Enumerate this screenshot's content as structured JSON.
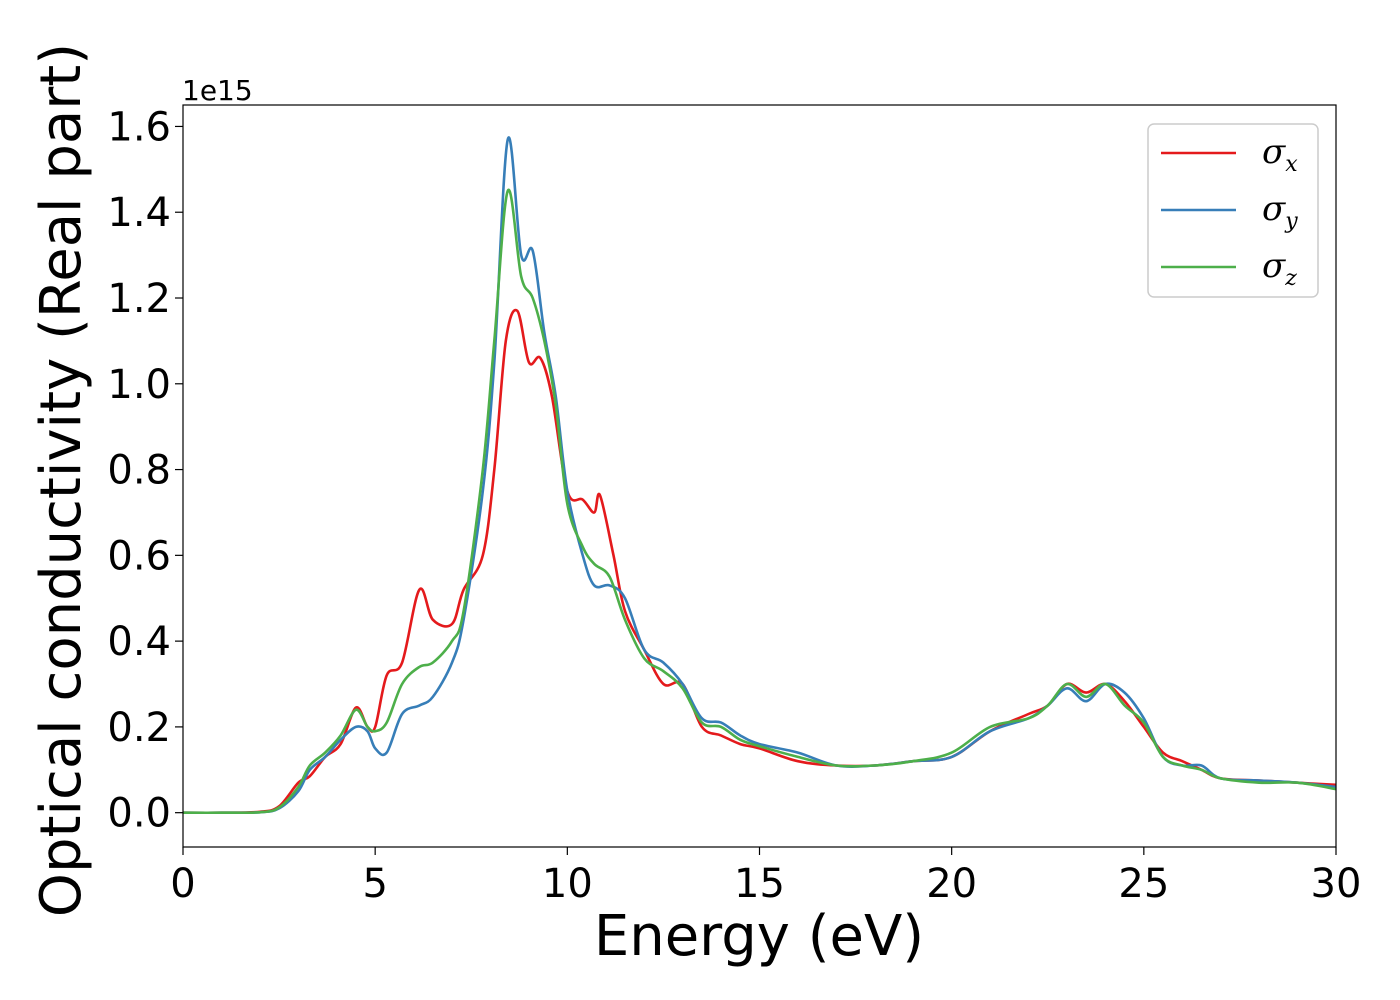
{
  "chart_data": {
    "type": "line",
    "title": "",
    "xlabel": "Energy (eV)",
    "ylabel": "Optical conductivity (Real part)",
    "y_offset_text": "1e15",
    "y_scale_factor": 1000000000000000.0,
    "xlim": [
      0,
      30
    ],
    "ylim": [
      -0.08,
      1.65
    ],
    "x_ticks": [
      0,
      5,
      10,
      15,
      20,
      25,
      30
    ],
    "x_tick_labels": [
      "0",
      "5",
      "10",
      "15",
      "20",
      "25",
      "30"
    ],
    "y_ticks": [
      0.0,
      0.2,
      0.4,
      0.6,
      0.8,
      1.0,
      1.2,
      1.4,
      1.6
    ],
    "y_tick_labels": [
      "0.0",
      "0.2",
      "0.4",
      "0.6",
      "0.8",
      "1.0",
      "1.2",
      "1.4",
      "1.6"
    ],
    "grid": false,
    "legend_position": "top-right",
    "series": [
      {
        "name": "σx",
        "symbol": "σ",
        "subscript": "x",
        "color": "#e41a1c",
        "points": [
          [
            0,
            0
          ],
          [
            1,
            0
          ],
          [
            2,
            0.002
          ],
          [
            2.5,
            0.015
          ],
          [
            3,
            0.07
          ],
          [
            3.3,
            0.085
          ],
          [
            3.7,
            0.13
          ],
          [
            4.1,
            0.16
          ],
          [
            4.5,
            0.245
          ],
          [
            4.8,
            0.2
          ],
          [
            5.0,
            0.2
          ],
          [
            5.3,
            0.32
          ],
          [
            5.7,
            0.35
          ],
          [
            6.15,
            0.52
          ],
          [
            6.5,
            0.45
          ],
          [
            7.0,
            0.44
          ],
          [
            7.3,
            0.52
          ],
          [
            7.8,
            0.6
          ],
          [
            8.1,
            0.8
          ],
          [
            8.4,
            1.1
          ],
          [
            8.7,
            1.17
          ],
          [
            9.0,
            1.05
          ],
          [
            9.3,
            1.06
          ],
          [
            9.6,
            0.97
          ],
          [
            10.0,
            0.75
          ],
          [
            10.4,
            0.73
          ],
          [
            10.7,
            0.7
          ],
          [
            10.85,
            0.74
          ],
          [
            11.2,
            0.6
          ],
          [
            11.5,
            0.47
          ],
          [
            12.0,
            0.38
          ],
          [
            12.5,
            0.3
          ],
          [
            13.0,
            0.3
          ],
          [
            13.5,
            0.2
          ],
          [
            14.0,
            0.18
          ],
          [
            14.5,
            0.16
          ],
          [
            15.0,
            0.15
          ],
          [
            16.0,
            0.12
          ],
          [
            17.0,
            0.11
          ],
          [
            18.0,
            0.11
          ],
          [
            19.0,
            0.12
          ],
          [
            20.0,
            0.13
          ],
          [
            21.0,
            0.19
          ],
          [
            22.0,
            0.23
          ],
          [
            22.5,
            0.25
          ],
          [
            23.0,
            0.3
          ],
          [
            23.5,
            0.28
          ],
          [
            24.0,
            0.3
          ],
          [
            24.5,
            0.26
          ],
          [
            25.0,
            0.2
          ],
          [
            25.5,
            0.14
          ],
          [
            26.0,
            0.12
          ],
          [
            26.5,
            0.1
          ],
          [
            27.0,
            0.08
          ],
          [
            28.0,
            0.075
          ],
          [
            29.0,
            0.07
          ],
          [
            30.0,
            0.065
          ]
        ]
      },
      {
        "name": "σy",
        "symbol": "σ",
        "subscript": "y",
        "color": "#377eb8",
        "points": [
          [
            0,
            0
          ],
          [
            1,
            0
          ],
          [
            2,
            0.001
          ],
          [
            2.5,
            0.01
          ],
          [
            3,
            0.05
          ],
          [
            3.3,
            0.1
          ],
          [
            3.7,
            0.13
          ],
          [
            4.1,
            0.17
          ],
          [
            4.5,
            0.2
          ],
          [
            4.8,
            0.19
          ],
          [
            5.0,
            0.15
          ],
          [
            5.3,
            0.14
          ],
          [
            5.7,
            0.23
          ],
          [
            6.15,
            0.25
          ],
          [
            6.5,
            0.27
          ],
          [
            7.0,
            0.35
          ],
          [
            7.3,
            0.45
          ],
          [
            7.8,
            0.75
          ],
          [
            8.1,
            1.05
          ],
          [
            8.45,
            1.57
          ],
          [
            8.8,
            1.3
          ],
          [
            9.1,
            1.31
          ],
          [
            9.4,
            1.12
          ],
          [
            9.7,
            0.97
          ],
          [
            10.0,
            0.75
          ],
          [
            10.4,
            0.6
          ],
          [
            10.7,
            0.53
          ],
          [
            11.1,
            0.53
          ],
          [
            11.5,
            0.5
          ],
          [
            12.0,
            0.38
          ],
          [
            12.5,
            0.35
          ],
          [
            13.0,
            0.3
          ],
          [
            13.5,
            0.22
          ],
          [
            14.0,
            0.21
          ],
          [
            14.5,
            0.18
          ],
          [
            15.0,
            0.16
          ],
          [
            16.0,
            0.14
          ],
          [
            17.0,
            0.11
          ],
          [
            18.0,
            0.11
          ],
          [
            19.0,
            0.12
          ],
          [
            20.0,
            0.13
          ],
          [
            21.0,
            0.19
          ],
          [
            22.0,
            0.22
          ],
          [
            22.5,
            0.25
          ],
          [
            23.0,
            0.29
          ],
          [
            23.5,
            0.26
          ],
          [
            24.0,
            0.3
          ],
          [
            24.5,
            0.28
          ],
          [
            25.0,
            0.22
          ],
          [
            25.5,
            0.13
          ],
          [
            26.0,
            0.11
          ],
          [
            26.5,
            0.11
          ],
          [
            27.0,
            0.08
          ],
          [
            28.0,
            0.075
          ],
          [
            29.0,
            0.07
          ],
          [
            30.0,
            0.06
          ]
        ]
      },
      {
        "name": "σz",
        "symbol": "σ",
        "subscript": "z",
        "color": "#4daf4a",
        "points": [
          [
            0,
            0
          ],
          [
            1,
            0
          ],
          [
            2,
            0.001
          ],
          [
            2.5,
            0.012
          ],
          [
            3,
            0.06
          ],
          [
            3.3,
            0.11
          ],
          [
            3.7,
            0.14
          ],
          [
            4.1,
            0.18
          ],
          [
            4.5,
            0.24
          ],
          [
            4.8,
            0.2
          ],
          [
            5.0,
            0.19
          ],
          [
            5.3,
            0.21
          ],
          [
            5.7,
            0.3
          ],
          [
            6.15,
            0.34
          ],
          [
            6.5,
            0.35
          ],
          [
            7.0,
            0.4
          ],
          [
            7.3,
            0.47
          ],
          [
            7.8,
            0.8
          ],
          [
            8.1,
            1.1
          ],
          [
            8.45,
            1.45
          ],
          [
            8.8,
            1.25
          ],
          [
            9.1,
            1.2
          ],
          [
            9.4,
            1.1
          ],
          [
            9.7,
            0.95
          ],
          [
            10.0,
            0.72
          ],
          [
            10.4,
            0.62
          ],
          [
            10.7,
            0.58
          ],
          [
            11.1,
            0.55
          ],
          [
            11.5,
            0.45
          ],
          [
            12.0,
            0.36
          ],
          [
            12.5,
            0.33
          ],
          [
            13.0,
            0.29
          ],
          [
            13.5,
            0.21
          ],
          [
            14.0,
            0.2
          ],
          [
            14.5,
            0.17
          ],
          [
            15.0,
            0.155
          ],
          [
            16.0,
            0.13
          ],
          [
            17.0,
            0.11
          ],
          [
            18.0,
            0.11
          ],
          [
            19.0,
            0.12
          ],
          [
            20.0,
            0.14
          ],
          [
            21.0,
            0.2
          ],
          [
            22.0,
            0.22
          ],
          [
            22.5,
            0.25
          ],
          [
            23.0,
            0.3
          ],
          [
            23.5,
            0.27
          ],
          [
            24.0,
            0.3
          ],
          [
            24.5,
            0.25
          ],
          [
            25.0,
            0.21
          ],
          [
            25.5,
            0.13
          ],
          [
            26.0,
            0.11
          ],
          [
            26.5,
            0.1
          ],
          [
            27.0,
            0.08
          ],
          [
            28.0,
            0.07
          ],
          [
            29.0,
            0.07
          ],
          [
            30.0,
            0.055
          ]
        ]
      }
    ]
  }
}
